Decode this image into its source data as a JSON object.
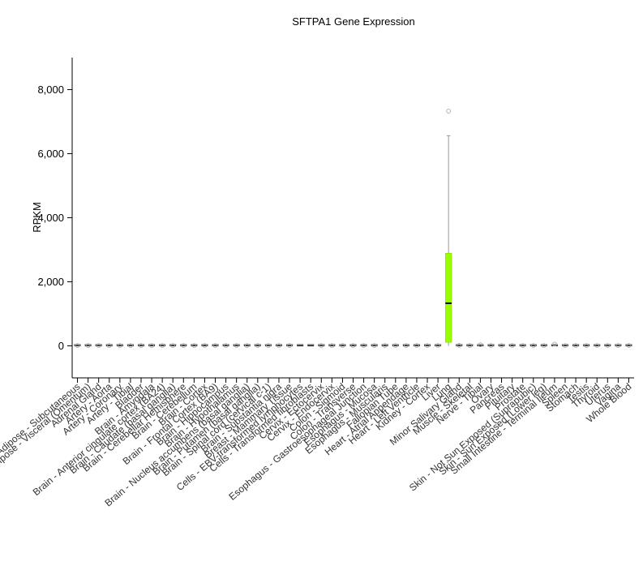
{
  "chart_data": {
    "type": "box",
    "title": "SFTPA1 Gene Expression",
    "xlabel": "",
    "ylabel": "RPKM",
    "ylim": [
      -1000,
      9000
    ],
    "yticks": [
      0,
      2000,
      4000,
      6000,
      8000
    ],
    "ytick_labels": [
      "0",
      "2,000",
      "4,000",
      "6,000",
      "8,000"
    ],
    "grid": false,
    "legend": "none",
    "categories": [
      "Adipose - Subcutaneous",
      "Adipose - Visceral (Omentum)",
      "Adrenal Gland",
      "Artery - Aorta",
      "Artery - Coronary",
      "Artery - Tibial",
      "Bladder",
      "Brain - Amygdala",
      "Brain - Anterior cingulate cortex (BA24)",
      "Brain - Caudate (basal ganglia)",
      "Brain - Cerebellar Hemisphere",
      "Brain - Cerebellum",
      "Brain - Cortex",
      "Brain - Frontal Cortex (BA9)",
      "Brain - Hippocampus",
      "Brain - Hypothalamus",
      "Brain - Nucleus accumbens (basal ganglia)",
      "Brain - Putamen (basal ganglia)",
      "Brain - Spinal cord (cervical c-1)",
      "Brain - Substantia nigra",
      "Breast - Mammary Tissue",
      "Cells - EBV-transformed lymphocytes",
      "Cells - Transformed fibroblasts",
      "Cervix - Ectocervix",
      "Cervix - Endocervix",
      "Colon - Sigmoid",
      "Colon - Transverse",
      "Esophagus - Gastroesophageal Junction",
      "Esophagus - Mucosa",
      "Esophagus - Muscularis",
      "Fallopian Tube",
      "Heart - Atrial Appendage",
      "Heart - Left Ventricle",
      "Kidney - Cortex",
      "Liver",
      "Lung",
      "Minor Salivary Gland",
      "Muscle - Skeletal",
      "Nerve - Tibial",
      "Ovary",
      "Pancreas",
      "Pituitary",
      "Prostate",
      "Skin - Not Sun Exposed (Suprapubic)",
      "Skin - Sun Exposed (Lower leg)",
      "Small Intestine - Terminal Ileum",
      "Spleen",
      "Stomach",
      "Testis",
      "Thyroid",
      "Uterus",
      "Vagina",
      "Whole Blood"
    ],
    "boxes": [
      {
        "q1": 0,
        "median": 1,
        "q3": 2,
        "whisker_low": 0,
        "whisker_high": 5,
        "outliers": [
          8
        ]
      },
      {
        "q1": 0,
        "median": 1,
        "q3": 2,
        "whisker_low": 0,
        "whisker_high": 5,
        "outliers": [
          8
        ]
      },
      {
        "q1": 0,
        "median": 1,
        "q3": 2,
        "whisker_low": 0,
        "whisker_high": 4,
        "outliers": [
          6
        ]
      },
      {
        "q1": 0,
        "median": 1,
        "q3": 2,
        "whisker_low": 0,
        "whisker_high": 4,
        "outliers": [
          6
        ]
      },
      {
        "q1": 0,
        "median": 1,
        "q3": 2,
        "whisker_low": 0,
        "whisker_high": 4,
        "outliers": [
          6
        ]
      },
      {
        "q1": 0,
        "median": 1,
        "q3": 2,
        "whisker_low": 0,
        "whisker_high": 4,
        "outliers": [
          6
        ]
      },
      {
        "q1": 0,
        "median": 1,
        "q3": 2,
        "whisker_low": 0,
        "whisker_high": 4,
        "outliers": [
          6
        ]
      },
      {
        "q1": 0,
        "median": 1,
        "q3": 2,
        "whisker_low": 0,
        "whisker_high": 4,
        "outliers": [
          6
        ]
      },
      {
        "q1": 0,
        "median": 1,
        "q3": 2,
        "whisker_low": 0,
        "whisker_high": 4,
        "outliers": [
          6
        ]
      },
      {
        "q1": 0,
        "median": 1,
        "q3": 2,
        "whisker_low": 0,
        "whisker_high": 4,
        "outliers": [
          6
        ]
      },
      {
        "q1": 0,
        "median": 1,
        "q3": 2,
        "whisker_low": 0,
        "whisker_high": 4,
        "outliers": [
          6
        ]
      },
      {
        "q1": 0,
        "median": 1,
        "q3": 2,
        "whisker_low": 0,
        "whisker_high": 4,
        "outliers": [
          6
        ]
      },
      {
        "q1": 0,
        "median": 1,
        "q3": 2,
        "whisker_low": 0,
        "whisker_high": 4,
        "outliers": [
          6
        ]
      },
      {
        "q1": 0,
        "median": 1,
        "q3": 2,
        "whisker_low": 0,
        "whisker_high": 4,
        "outliers": [
          6
        ]
      },
      {
        "q1": 0,
        "median": 1,
        "q3": 2,
        "whisker_low": 0,
        "whisker_high": 4,
        "outliers": [
          6
        ]
      },
      {
        "q1": 0,
        "median": 1,
        "q3": 2,
        "whisker_low": 0,
        "whisker_high": 4,
        "outliers": [
          6
        ]
      },
      {
        "q1": 0,
        "median": 1,
        "q3": 2,
        "whisker_low": 0,
        "whisker_high": 4,
        "outliers": [
          6
        ]
      },
      {
        "q1": 0,
        "median": 1,
        "q3": 2,
        "whisker_low": 0,
        "whisker_high": 4,
        "outliers": [
          6
        ]
      },
      {
        "q1": 0,
        "median": 1,
        "q3": 2,
        "whisker_low": 0,
        "whisker_high": 4,
        "outliers": [
          6
        ]
      },
      {
        "q1": 0,
        "median": 1,
        "q3": 2,
        "whisker_low": 0,
        "whisker_high": 4,
        "outliers": [
          6
        ]
      },
      {
        "q1": 0,
        "median": 1,
        "q3": 2,
        "whisker_low": 0,
        "whisker_high": 5,
        "outliers": [
          8
        ]
      },
      {
        "q1": 0,
        "median": 0,
        "q3": 1,
        "whisker_low": 0,
        "whisker_high": 2,
        "outliers": []
      },
      {
        "q1": 0,
        "median": 0,
        "q3": 1,
        "whisker_low": 0,
        "whisker_high": 2,
        "outliers": []
      },
      {
        "q1": 0,
        "median": 1,
        "q3": 2,
        "whisker_low": 0,
        "whisker_high": 4,
        "outliers": [
          6
        ]
      },
      {
        "q1": 0,
        "median": 1,
        "q3": 2,
        "whisker_low": 0,
        "whisker_high": 4,
        "outliers": [
          6
        ]
      },
      {
        "q1": 0,
        "median": 1,
        "q3": 2,
        "whisker_low": 0,
        "whisker_high": 4,
        "outliers": [
          6
        ]
      },
      {
        "q1": 0,
        "median": 1,
        "q3": 2,
        "whisker_low": 0,
        "whisker_high": 4,
        "outliers": [
          6
        ]
      },
      {
        "q1": 0,
        "median": 1,
        "q3": 2,
        "whisker_low": 0,
        "whisker_high": 4,
        "outliers": [
          6
        ]
      },
      {
        "q1": 0,
        "median": 1,
        "q3": 2,
        "whisker_low": 0,
        "whisker_high": 4,
        "outliers": [
          6
        ]
      },
      {
        "q1": 0,
        "median": 1,
        "q3": 2,
        "whisker_low": 0,
        "whisker_high": 4,
        "outliers": [
          6
        ]
      },
      {
        "q1": 0,
        "median": 1,
        "q3": 2,
        "whisker_low": 0,
        "whisker_high": 4,
        "outliers": [
          6
        ]
      },
      {
        "q1": 0,
        "median": 1,
        "q3": 2,
        "whisker_low": 0,
        "whisker_high": 4,
        "outliers": [
          6
        ]
      },
      {
        "q1": 0,
        "median": 1,
        "q3": 2,
        "whisker_low": 0,
        "whisker_high": 4,
        "outliers": [
          6
        ]
      },
      {
        "q1": 0,
        "median": 1,
        "q3": 2,
        "whisker_low": 0,
        "whisker_high": 4,
        "outliers": [
          6
        ]
      },
      {
        "q1": 0,
        "median": 1,
        "q3": 2,
        "whisker_low": 0,
        "whisker_high": 4,
        "outliers": [
          6
        ]
      },
      {
        "q1": 110,
        "median": 1330,
        "q3": 2890,
        "whisker_low": 0,
        "whisker_high": 6560,
        "outliers": [
          7330
        ]
      },
      {
        "q1": 0,
        "median": 1,
        "q3": 3,
        "whisker_low": 0,
        "whisker_high": 8,
        "outliers": [
          12
        ]
      },
      {
        "q1": 0,
        "median": 1,
        "q3": 2,
        "whisker_low": 0,
        "whisker_high": 4,
        "outliers": [
          6
        ]
      },
      {
        "q1": 0,
        "median": 1,
        "q3": 2,
        "whisker_low": 0,
        "whisker_high": 5,
        "outliers": [
          35
        ]
      },
      {
        "q1": 0,
        "median": 1,
        "q3": 2,
        "whisker_low": 0,
        "whisker_high": 4,
        "outliers": [
          6
        ]
      },
      {
        "q1": 0,
        "median": 1,
        "q3": 2,
        "whisker_low": 0,
        "whisker_high": 4,
        "outliers": [
          6
        ]
      },
      {
        "q1": 0,
        "median": 1,
        "q3": 2,
        "whisker_low": 0,
        "whisker_high": 4,
        "outliers": [
          6
        ]
      },
      {
        "q1": 0,
        "median": 1,
        "q3": 2,
        "whisker_low": 0,
        "whisker_high": 4,
        "outliers": [
          6
        ]
      },
      {
        "q1": 0,
        "median": 1,
        "q3": 2,
        "whisker_low": 0,
        "whisker_high": 4,
        "outliers": [
          6
        ]
      },
      {
        "q1": 0,
        "median": 1,
        "q3": 2,
        "whisker_low": 0,
        "whisker_high": 4,
        "outliers": [
          6
        ]
      },
      {
        "q1": 0,
        "median": 1,
        "q3": 2,
        "whisker_low": 0,
        "whisker_high": 5,
        "outliers": [
          55
        ]
      },
      {
        "q1": 0,
        "median": 1,
        "q3": 2,
        "whisker_low": 0,
        "whisker_high": 4,
        "outliers": [
          6
        ]
      },
      {
        "q1": 0,
        "median": 1,
        "q3": 2,
        "whisker_low": 0,
        "whisker_high": 4,
        "outliers": [
          6
        ]
      },
      {
        "q1": 0,
        "median": 1,
        "q3": 2,
        "whisker_low": 0,
        "whisker_high": 4,
        "outliers": [
          6
        ]
      },
      {
        "q1": 0,
        "median": 1,
        "q3": 2,
        "whisker_low": 0,
        "whisker_high": 4,
        "outliers": [
          6
        ]
      },
      {
        "q1": 0,
        "median": 1,
        "q3": 2,
        "whisker_low": 0,
        "whisker_high": 4,
        "outliers": [
          6
        ]
      },
      {
        "q1": 0,
        "median": 1,
        "q3": 2,
        "whisker_low": 0,
        "whisker_high": 4,
        "outliers": [
          6
        ]
      },
      {
        "q1": 0,
        "median": 1,
        "q3": 2,
        "whisker_low": 0,
        "whisker_high": 5,
        "outliers": [
          10
        ]
      }
    ],
    "colors": {
      "highlight_box_fill": "#99ff00",
      "default_box_fill": "#888888",
      "whisker": "#999999",
      "median": "#000000",
      "axis": "#000000"
    },
    "highlight_category": "Lung"
  }
}
